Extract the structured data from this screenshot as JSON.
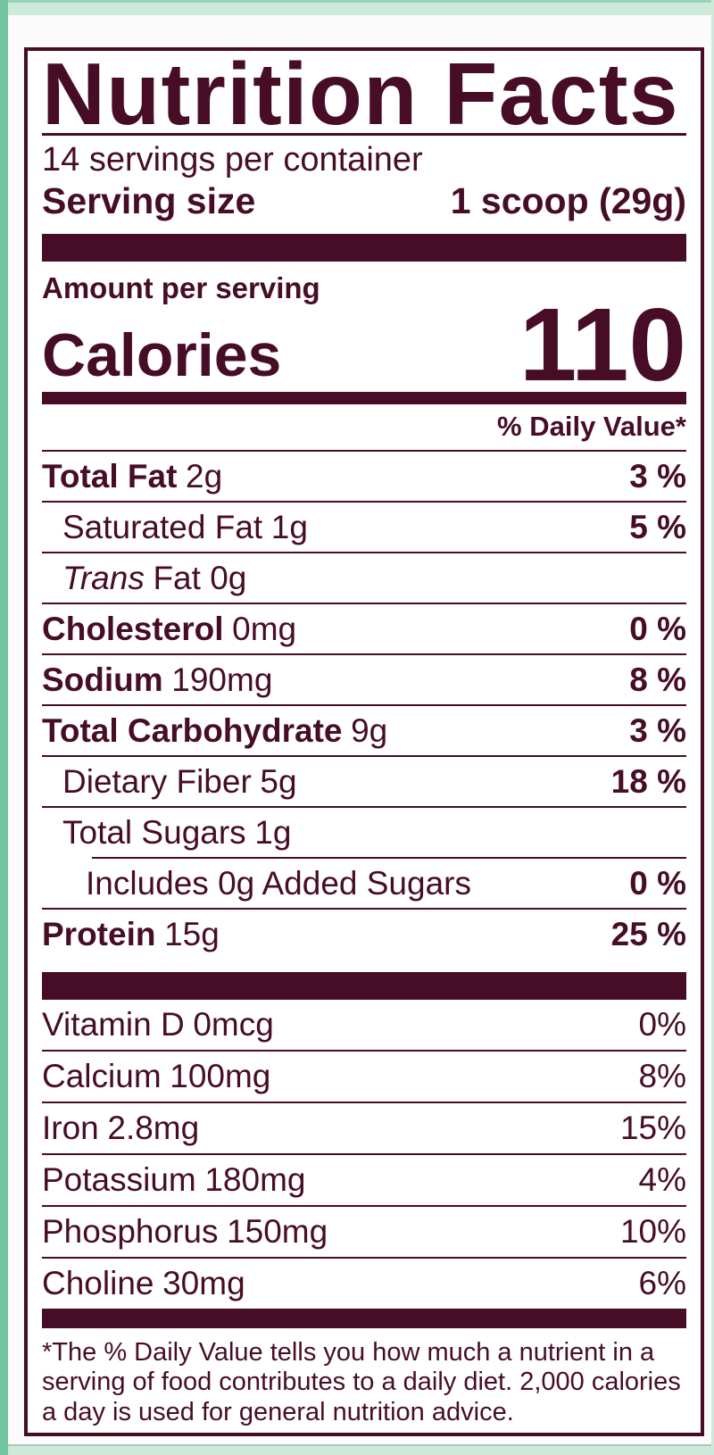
{
  "colors": {
    "text": "#470d26",
    "packaging_teal": "#72c5a1",
    "packaging_mint": "#cde9da"
  },
  "label": {
    "title": "Nutrition Facts",
    "servings_per_container": "14 servings per container",
    "serving_size_label": "Serving size",
    "serving_size_value": "1 scoop (29g)",
    "amount_per_serving": "Amount per serving",
    "calories_label": "Calories",
    "calories_value": "110",
    "daily_value_header": "% Daily Value*",
    "footnote": "*The % Daily Value tells you how much a nutrient in a serving of food contributes to a daily diet. 2,000 calories a day is used for general nutrition advice."
  },
  "nutrient_rows": [
    {
      "name": "Total Fat",
      "amount": "2g",
      "dv": "3 %",
      "bold": true,
      "italic": false,
      "indent": 0,
      "rule_indent": false
    },
    {
      "name": "Saturated Fat",
      "amount": "1g",
      "dv": "5 %",
      "bold": false,
      "italic": false,
      "indent": 1,
      "rule_indent": false
    },
    {
      "name": "Trans",
      "amount": "Fat 0g",
      "dv": "",
      "bold": false,
      "italic": true,
      "indent": 1,
      "rule_indent": false
    },
    {
      "name": "Cholesterol",
      "amount": "0mg",
      "dv": "0 %",
      "bold": true,
      "italic": false,
      "indent": 0,
      "rule_indent": false
    },
    {
      "name": "Sodium",
      "amount": "190mg",
      "dv": "8 %",
      "bold": true,
      "italic": false,
      "indent": 0,
      "rule_indent": false
    },
    {
      "name": "Total Carbohydrate",
      "amount": "9g",
      "dv": "3 %",
      "bold": true,
      "italic": false,
      "indent": 0,
      "rule_indent": false
    },
    {
      "name": "Dietary Fiber",
      "amount": "5g",
      "dv": "18 %",
      "bold": false,
      "italic": false,
      "indent": 1,
      "rule_indent": false
    },
    {
      "name": "Total Sugars",
      "amount": "1g",
      "dv": "",
      "bold": false,
      "italic": false,
      "indent": 1,
      "rule_indent": false
    },
    {
      "name": "Includes 0g Added Sugars",
      "amount": "",
      "dv": "0 %",
      "bold": false,
      "italic": false,
      "indent": 2,
      "rule_indent": true
    },
    {
      "name": "Protein",
      "amount": "15g",
      "dv": "25 %",
      "bold": true,
      "italic": false,
      "indent": 0,
      "rule_indent": false
    }
  ],
  "vitamin_rows": [
    {
      "name": "Vitamin D",
      "amount": "0mcg",
      "dv": "0%"
    },
    {
      "name": "Calcium",
      "amount": "100mg",
      "dv": "8%"
    },
    {
      "name": "Iron",
      "amount": "2.8mg",
      "dv": "15%"
    },
    {
      "name": "Potassium",
      "amount": "180mg",
      "dv": "4%"
    },
    {
      "name": "Phosphorus",
      "amount": "150mg",
      "dv": "10%"
    },
    {
      "name": "Choline",
      "amount": "30mg",
      "dv": "6%"
    }
  ]
}
